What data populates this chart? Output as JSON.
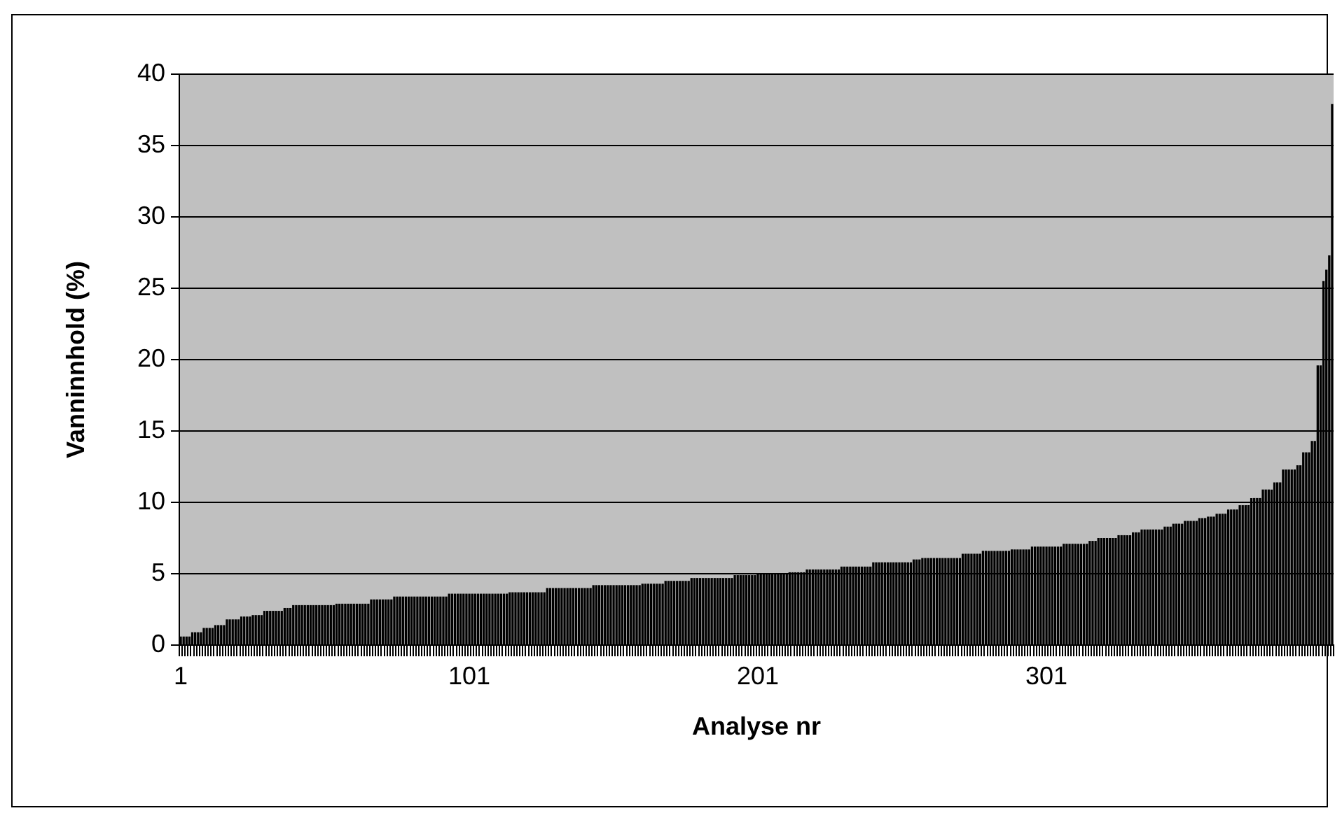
{
  "chart_data": {
    "type": "bar",
    "xlabel": "Analyse nr",
    "ylabel": "Vanninnhold (%)",
    "color": "#000000",
    "ylim": [
      0,
      40
    ],
    "yticks": [
      0,
      5,
      10,
      15,
      20,
      25,
      30,
      35,
      40
    ],
    "grid": "y",
    "legend": false,
    "categories": [
      "1",
      null,
      null,
      null,
      null,
      null,
      null,
      null,
      null,
      null,
      null,
      null,
      null,
      null,
      null,
      null,
      null,
      null,
      null,
      null,
      null,
      null,
      null,
      null,
      null,
      null,
      null,
      null,
      null,
      null,
      null,
      null,
      null,
      null,
      null,
      null,
      null,
      null,
      null,
      null,
      null,
      null,
      null,
      null,
      null,
      null,
      null,
      null,
      null,
      null,
      null,
      null,
      null,
      null,
      null,
      null,
      null,
      null,
      null,
      null,
      null,
      null,
      null,
      null,
      null,
      null,
      null,
      null,
      null,
      null,
      null,
      null,
      null,
      null,
      null,
      null,
      null,
      null,
      null,
      null,
      null,
      null,
      null,
      null,
      null,
      null,
      null,
      null,
      null,
      null,
      null,
      null,
      null,
      null,
      null,
      null,
      null,
      null,
      null,
      null,
      "101",
      null,
      null,
      null,
      null,
      null,
      null,
      null,
      null,
      null,
      null,
      null,
      null,
      null,
      null,
      null,
      null,
      null,
      null,
      null,
      null,
      null,
      null,
      null,
      null,
      null,
      null,
      null,
      null,
      null,
      null,
      null,
      null,
      null,
      null,
      null,
      null,
      null,
      null,
      null,
      null,
      null,
      null,
      null,
      null,
      null,
      null,
      null,
      null,
      null,
      null,
      null,
      null,
      null,
      null,
      null,
      null,
      null,
      null,
      null,
      null,
      null,
      null,
      null,
      null,
      null,
      null,
      null,
      null,
      null,
      null,
      null,
      null,
      null,
      null,
      null,
      null,
      null,
      null,
      null,
      null,
      null,
      null,
      null,
      null,
      null,
      null,
      null,
      null,
      null,
      null,
      null,
      null,
      null,
      null,
      null,
      null,
      null,
      null,
      null,
      "201",
      null,
      null,
      null,
      null,
      null,
      null,
      null,
      null,
      null,
      null,
      null,
      null,
      null,
      null,
      null,
      null,
      null,
      null,
      null,
      null,
      null,
      null,
      null,
      null,
      null,
      null,
      null,
      null,
      null,
      null,
      null,
      null,
      null,
      null,
      null,
      null,
      null,
      null,
      null,
      null,
      null,
      null,
      null,
      null,
      null,
      null,
      null,
      null,
      null,
      null,
      null,
      null,
      null,
      null,
      null,
      null,
      null,
      null,
      null,
      null,
      null,
      null,
      null,
      null,
      null,
      null,
      null,
      null,
      null,
      null,
      null,
      null,
      null,
      null,
      null,
      null,
      null,
      null,
      null,
      null,
      null,
      null,
      null,
      null,
      null,
      null,
      null,
      null,
      null,
      null,
      null,
      null,
      null,
      null,
      null,
      null,
      null,
      null,
      null,
      "301",
      null,
      null,
      null,
      null,
      null,
      null,
      null,
      null,
      null,
      null,
      null,
      null,
      null,
      null,
      null,
      null,
      null,
      null,
      null,
      null,
      null,
      null,
      null,
      null,
      null,
      null,
      null,
      null,
      null,
      null,
      null,
      null,
      null,
      null,
      null,
      null,
      null,
      null,
      null,
      null,
      null,
      null,
      null,
      null,
      null,
      null,
      null,
      null,
      null,
      null,
      null,
      null,
      null,
      null,
      null,
      null,
      null,
      null,
      null,
      null,
      null,
      null,
      null,
      null,
      null,
      null,
      null,
      null,
      null,
      null,
      null,
      null,
      null,
      null,
      null,
      null,
      null,
      null,
      null,
      null,
      null,
      null,
      null,
      null,
      null,
      null,
      null,
      null,
      null,
      null,
      null,
      null,
      null,
      null,
      null,
      null,
      null,
      null,
      null
    ],
    "values": [
      0.6,
      0.6,
      0.6,
      0.6,
      0.9,
      0.9,
      0.9,
      0.9,
      1.2,
      1.2,
      1.2,
      1.2,
      1.4,
      1.4,
      1.4,
      1.4,
      1.8,
      1.8,
      1.8,
      1.8,
      1.8,
      2.0,
      2.0,
      2.0,
      2.0,
      2.1,
      2.1,
      2.1,
      2.1,
      2.4,
      2.4,
      2.4,
      2.4,
      2.4,
      2.4,
      2.4,
      2.6,
      2.6,
      2.6,
      2.8,
      2.8,
      2.8,
      2.8,
      2.8,
      2.8,
      2.8,
      2.8,
      2.8,
      2.8,
      2.8,
      2.8,
      2.8,
      2.8,
      2.8,
      2.9,
      2.9,
      2.9,
      2.9,
      2.9,
      2.9,
      2.9,
      2.9,
      2.9,
      2.9,
      2.9,
      2.9,
      3.2,
      3.2,
      3.2,
      3.2,
      3.2,
      3.2,
      3.2,
      3.2,
      3.4,
      3.4,
      3.4,
      3.4,
      3.4,
      3.4,
      3.4,
      3.4,
      3.4,
      3.4,
      3.4,
      3.4,
      3.4,
      3.4,
      3.4,
      3.4,
      3.4,
      3.4,
      3.4,
      3.6,
      3.6,
      3.6,
      3.6,
      3.6,
      3.6,
      3.6,
      3.6,
      3.6,
      3.6,
      3.6,
      3.6,
      3.6,
      3.6,
      3.6,
      3.6,
      3.6,
      3.6,
      3.6,
      3.6,
      3.6,
      3.7,
      3.7,
      3.7,
      3.7,
      3.7,
      3.7,
      3.7,
      3.7,
      3.7,
      3.7,
      3.7,
      3.7,
      3.7,
      4.0,
      4.0,
      4.0,
      4.0,
      4.0,
      4.0,
      4.0,
      4.0,
      4.0,
      4.0,
      4.0,
      4.0,
      4.0,
      4.0,
      4.0,
      4.0,
      4.2,
      4.2,
      4.2,
      4.2,
      4.2,
      4.2,
      4.2,
      4.2,
      4.2,
      4.2,
      4.2,
      4.2,
      4.2,
      4.2,
      4.2,
      4.2,
      4.2,
      4.3,
      4.3,
      4.3,
      4.3,
      4.3,
      4.3,
      4.3,
      4.3,
      4.5,
      4.5,
      4.5,
      4.5,
      4.5,
      4.5,
      4.5,
      4.5,
      4.5,
      4.7,
      4.7,
      4.7,
      4.7,
      4.7,
      4.7,
      4.7,
      4.7,
      4.7,
      4.7,
      4.7,
      4.7,
      4.7,
      4.7,
      4.7,
      4.9,
      4.9,
      4.9,
      4.9,
      4.9,
      4.9,
      4.9,
      4.9,
      5.0,
      5.0,
      5.0,
      5.0,
      5.0,
      5.0,
      5.0,
      5.0,
      5.0,
      5.0,
      5.0,
      5.1,
      5.1,
      5.1,
      5.1,
      5.1,
      5.1,
      5.3,
      5.3,
      5.3,
      5.3,
      5.3,
      5.3,
      5.3,
      5.3,
      5.3,
      5.3,
      5.3,
      5.3,
      5.5,
      5.5,
      5.5,
      5.5,
      5.5,
      5.5,
      5.5,
      5.5,
      5.5,
      5.5,
      5.5,
      5.8,
      5.8,
      5.8,
      5.8,
      5.8,
      5.8,
      5.8,
      5.8,
      5.8,
      5.8,
      5.8,
      5.8,
      5.8,
      5.8,
      6.0,
      6.0,
      6.0,
      6.1,
      6.1,
      6.1,
      6.1,
      6.1,
      6.1,
      6.1,
      6.1,
      6.1,
      6.1,
      6.1,
      6.1,
      6.1,
      6.1,
      6.4,
      6.4,
      6.4,
      6.4,
      6.4,
      6.4,
      6.4,
      6.6,
      6.6,
      6.6,
      6.6,
      6.6,
      6.6,
      6.6,
      6.6,
      6.6,
      6.6,
      6.7,
      6.7,
      6.7,
      6.7,
      6.7,
      6.7,
      6.7,
      6.9,
      6.9,
      6.9,
      6.9,
      6.9,
      6.9,
      6.9,
      6.9,
      6.9,
      6.9,
      6.9,
      7.1,
      7.1,
      7.1,
      7.1,
      7.1,
      7.1,
      7.1,
      7.1,
      7.1,
      7.3,
      7.3,
      7.3,
      7.5,
      7.5,
      7.5,
      7.5,
      7.5,
      7.5,
      7.5,
      7.7,
      7.7,
      7.7,
      7.7,
      7.7,
      7.9,
      7.9,
      7.9,
      8.1,
      8.1,
      8.1,
      8.1,
      8.1,
      8.1,
      8.1,
      8.1,
      8.3,
      8.3,
      8.3,
      8.5,
      8.5,
      8.5,
      8.5,
      8.7,
      8.7,
      8.7,
      8.7,
      8.7,
      8.9,
      8.9,
      8.9,
      9.0,
      9.0,
      9.0,
      9.2,
      9.2,
      9.2,
      9.2,
      9.5,
      9.5,
      9.5,
      9.5,
      9.8,
      9.8,
      9.8,
      9.8,
      10.3,
      10.3,
      10.3,
      10.3,
      10.9,
      10.9,
      10.9,
      10.9,
      11.4,
      11.4,
      11.4,
      12.3,
      12.3,
      12.3,
      12.3,
      12.3,
      12.6,
      12.6,
      13.5,
      13.5,
      13.5,
      14.3,
      14.3,
      19.6,
      19.6,
      25.5,
      26.3,
      27.3,
      37.9
    ]
  }
}
